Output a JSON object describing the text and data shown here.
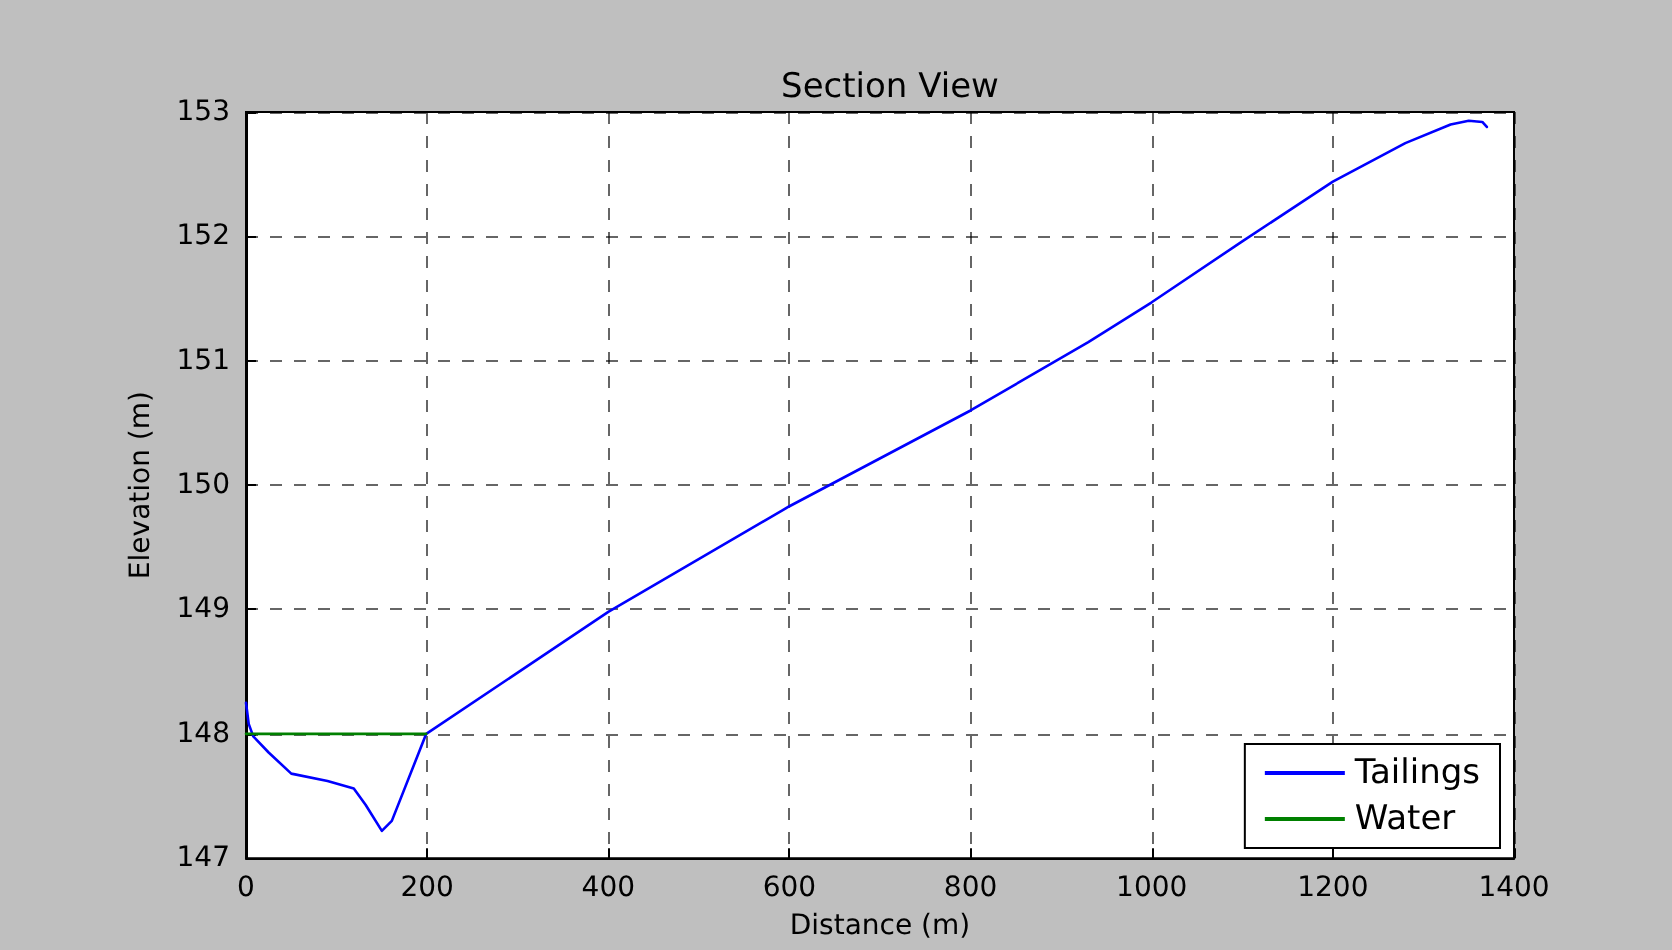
{
  "chart_data": {
    "type": "line",
    "title": "Section View",
    "xlabel": "Distance (m)",
    "ylabel": "Elevation (m)",
    "xlim": [
      0,
      1400
    ],
    "xticks": [
      0,
      200,
      400,
      600,
      800,
      1000,
      1200,
      1400
    ],
    "ylim": [
      147,
      153
    ],
    "yticks": [
      147,
      148,
      149,
      150,
      151,
      152,
      153
    ],
    "grid": true,
    "legend": "bottom right",
    "marker": "none",
    "line_style": "solid",
    "series": [
      {
        "name": "Tailings",
        "color": "#0000ff",
        "x": [
          0,
          3,
          8,
          25,
          50,
          90,
          119,
          132,
          150,
          161,
          199,
          400,
          600,
          800,
          930,
          1000,
          1100,
          1200,
          1280,
          1330,
          1350,
          1365,
          1370
        ],
        "values": [
          148.25,
          148.08,
          147.98,
          147.85,
          147.68,
          147.62,
          147.56,
          147.43,
          147.22,
          147.3,
          148.0,
          148.98,
          149.83,
          150.6,
          151.15,
          151.47,
          151.96,
          152.44,
          152.75,
          152.9,
          152.93,
          152.92,
          152.88
        ]
      },
      {
        "name": "Water",
        "color": "#008000",
        "x": [
          0,
          199
        ],
        "values": [
          148.0,
          148.0
        ]
      }
    ]
  }
}
